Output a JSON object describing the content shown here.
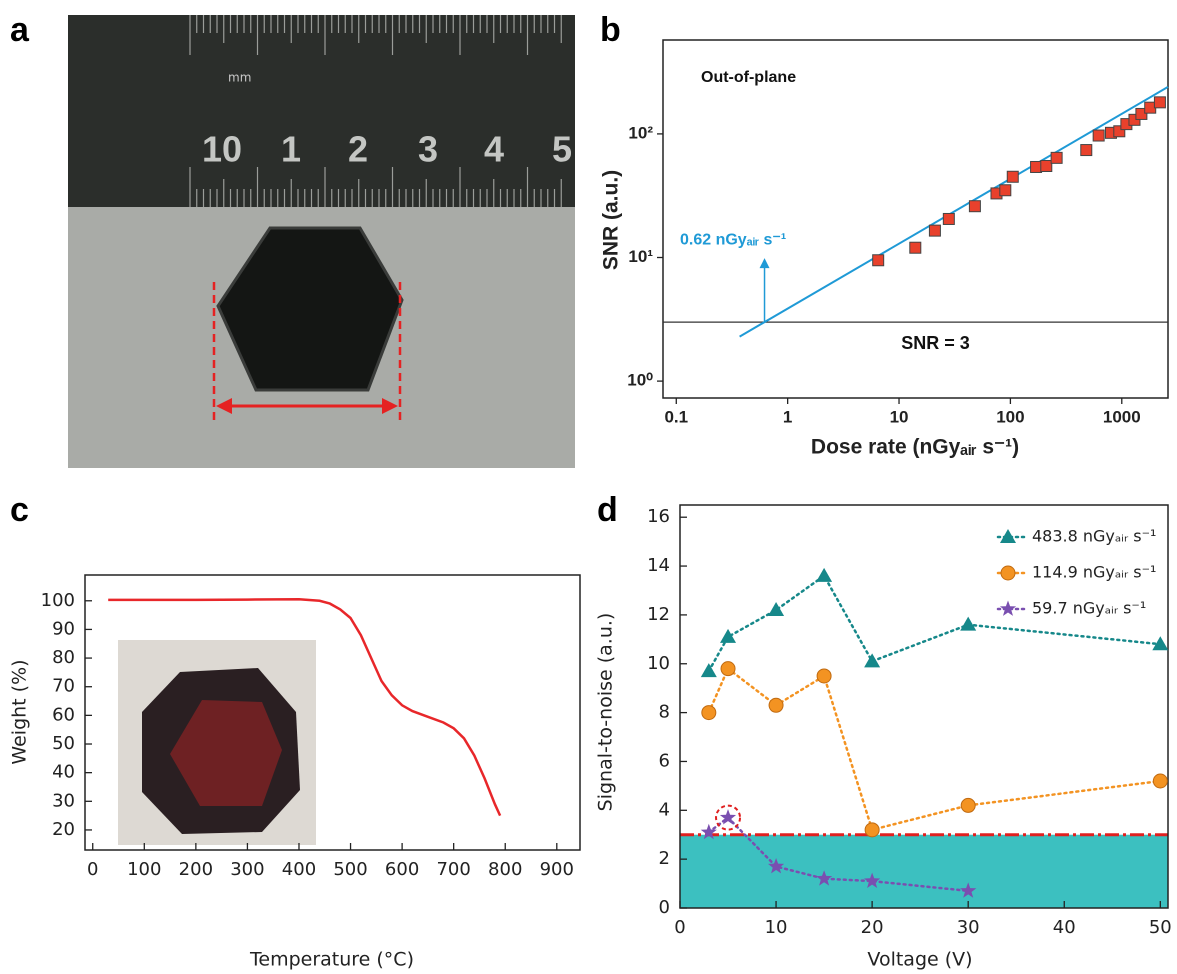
{
  "photo": {
    "label": "a",
    "ruler_unit": "mm",
    "ruler_numbers": [
      "10",
      "1",
      "2",
      "3",
      "4",
      "5"
    ]
  },
  "chart_data": [
    {
      "type": "scatter",
      "label": "b",
      "xlabel": "Dose rate (nGyₐᵢᵣ s⁻¹)",
      "ylabel": "SNR (a.u.)",
      "xscale": "log",
      "yscale": "log",
      "xlim": [
        0.076,
        2600
      ],
      "ylim": [
        0.73,
        575
      ],
      "xticks": [
        0.1,
        1,
        10,
        100,
        1000
      ],
      "yticks": [
        {
          "value": 1,
          "label": "10⁰"
        },
        {
          "value": 10,
          "label": "10¹"
        },
        {
          "value": 100,
          "label": "10²"
        }
      ],
      "annotations": [
        {
          "text": "Out-of-plane"
        },
        {
          "text": "0.62 nGyₐᵢᵣ s⁻¹",
          "x": 0.62
        }
      ],
      "points": {
        "color": "#e8412c",
        "x": [
          6.5,
          14,
          21,
          28,
          48,
          75,
          90,
          105,
          170,
          210,
          260,
          480,
          620,
          800,
          950,
          1100,
          1300,
          1500,
          1800,
          2200
        ],
        "y": [
          9.5,
          12,
          16.5,
          20.5,
          26,
          33,
          35,
          45,
          54,
          55,
          64,
          74,
          97,
          102,
          105,
          120,
          130,
          145,
          163,
          180
        ]
      },
      "fit_line": {
        "color": "#1f9ad6",
        "x": [
          0.37,
          2600
        ],
        "y": [
          2.29,
          240
        ]
      },
      "reference_line": {
        "value": 3,
        "label": "SNR = 3"
      }
    },
    {
      "type": "line",
      "label": "c",
      "xlabel": "Temperature (°C)",
      "ylabel": "Weight (%)",
      "xlim": [
        -15,
        945
      ],
      "ylim": [
        13,
        109
      ],
      "xticks": [
        0,
        100,
        200,
        300,
        400,
        500,
        600,
        700,
        800,
        900
      ],
      "yticks": [
        20,
        30,
        40,
        50,
        60,
        70,
        80,
        90,
        100
      ],
      "color": "#e8272a",
      "x": [
        30,
        100,
        200,
        300,
        400,
        440,
        460,
        480,
        500,
        520,
        540,
        560,
        580,
        600,
        620,
        650,
        680,
        700,
        720,
        740,
        760,
        780,
        790
      ],
      "values": [
        100.3,
        100.3,
        100.3,
        100.4,
        100.5,
        100,
        99,
        97,
        94,
        88,
        80,
        72,
        67,
        63.5,
        61.5,
        59.5,
        57.5,
        55.5,
        52,
        46,
        38,
        29,
        25
      ]
    },
    {
      "type": "line",
      "label": "d",
      "xlabel": "Voltage (V)",
      "ylabel": "Signal-to-noise (a.u.)",
      "xlim": [
        0,
        50.8
      ],
      "ylim": [
        0,
        16.5
      ],
      "xticks": [
        0,
        10,
        20,
        30,
        40,
        50
      ],
      "yticks": [
        0,
        2,
        4,
        6,
        8,
        10,
        12,
        14,
        16
      ],
      "threshold": 3,
      "threshold_fill": "#3cc0c0",
      "threshold_line_color": "#e02020",
      "legend": "upper right",
      "series": [
        {
          "name": "483.8 nGyₐᵢᵣ s⁻¹",
          "color": "#16888a",
          "marker": "triangle",
          "x": [
            3,
            5,
            10,
            15,
            20,
            30,
            50
          ],
          "values": [
            9.7,
            11.1,
            12.2,
            13.6,
            10.1,
            11.6,
            10.8
          ]
        },
        {
          "name": "114.9 nGyₐᵢᵣ s⁻¹",
          "color": "#f39322",
          "marker": "circle",
          "x": [
            3,
            5,
            10,
            15,
            20,
            30,
            50
          ],
          "values": [
            8.0,
            9.8,
            8.3,
            9.5,
            3.2,
            4.2,
            5.2
          ]
        },
        {
          "name": "59.7 nGyₐᵢᵣ s⁻¹",
          "color": "#7a4fb0",
          "marker": "star",
          "x": [
            3,
            5,
            10,
            15,
            20,
            30
          ],
          "values": [
            3.1,
            3.7,
            1.7,
            1.2,
            1.1,
            0.7
          ]
        }
      ]
    }
  ]
}
